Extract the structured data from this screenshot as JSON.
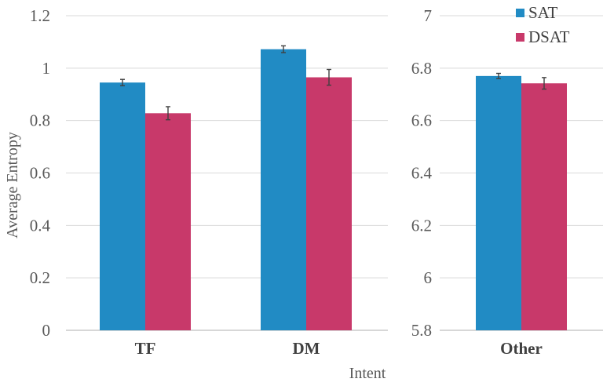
{
  "chart_data": [
    {
      "type": "bar",
      "categories": [
        "TF",
        "DM"
      ],
      "series": [
        {
          "name": "SAT",
          "values": [
            0.945,
            1.072
          ],
          "errors": [
            0.012,
            0.013
          ]
        },
        {
          "name": "DSAT",
          "values": [
            0.828,
            0.965
          ],
          "errors": [
            0.025,
            0.03
          ]
        }
      ],
      "ylabel": "Average Entropy",
      "ylim": [
        0,
        1.2
      ],
      "yticks": [
        "0",
        "0.2",
        "0.4",
        "0.6",
        "0.8",
        "1",
        "1.2"
      ],
      "grid": true
    },
    {
      "type": "bar",
      "categories": [
        "Other"
      ],
      "series": [
        {
          "name": "SAT",
          "values": [
            6.77
          ],
          "errors": [
            0.01
          ]
        },
        {
          "name": "DSAT",
          "values": [
            6.742
          ],
          "errors": [
            0.022
          ]
        }
      ],
      "ylim": [
        5.8,
        7.0
      ],
      "yticks": [
        "5.8",
        "6",
        "6.2",
        "6.4",
        "6.6",
        "6.8",
        "7"
      ],
      "grid": true
    }
  ],
  "xlabel": "Intent",
  "legend": {
    "placement": "top-right",
    "items": [
      {
        "label": "SAT",
        "color": "#218bc4"
      },
      {
        "label": "DSAT",
        "color": "#c8396a"
      }
    ]
  },
  "colors": {
    "SAT": "#218bc4",
    "DSAT": "#c8396a"
  }
}
